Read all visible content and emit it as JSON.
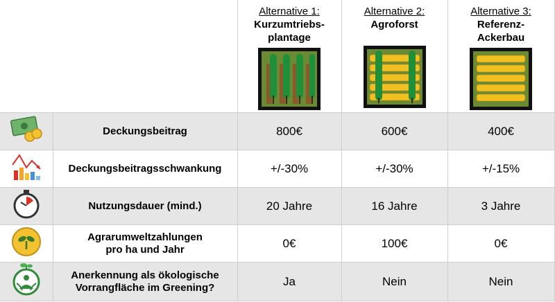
{
  "alternatives": [
    {
      "title": "Alternative 1:",
      "name": "Kurzumtriebs-\nplantage",
      "pic": "short-rotation-plantation-icon"
    },
    {
      "title": "Alternative 2:",
      "name": "Agroforst",
      "pic": "agroforestry-field-icon"
    },
    {
      "title": "Alternative 3:",
      "name": "Referenz-\nAckerbau",
      "pic": "wheat-field-icon"
    }
  ],
  "rows": [
    {
      "icon": "money-icon",
      "label": "Deckungsbeitrag",
      "values": [
        "800€",
        "600€",
        "400€"
      ]
    },
    {
      "icon": "fluctuation-chart-icon",
      "label": "Deckungsbeitragsschwankung",
      "values": [
        "+/-30%",
        "+/-30%",
        "+/-15%"
      ]
    },
    {
      "icon": "stopwatch-icon",
      "label": "Nutzungsdauer (mind.)",
      "values": [
        "20 Jahre",
        "16 Jahre",
        "3 Jahre"
      ]
    },
    {
      "icon": "sprout-coin-icon",
      "label": "Agrarumweltzahlungen\npro ha und Jahr",
      "values": [
        "0€",
        "100€",
        "0€"
      ]
    },
    {
      "icon": "greening-person-icon",
      "label": "Anerkennung als ökologische\nVorrangfläche im Greening?",
      "values": [
        "Ja",
        "Nein",
        "Nein"
      ]
    }
  ],
  "colors": {
    "shade": "#e6e6e6",
    "field_green": "#6a8a34",
    "soil": "#8a5a2b",
    "tree": "#1f8f3a",
    "wheat": "#f0c020"
  }
}
